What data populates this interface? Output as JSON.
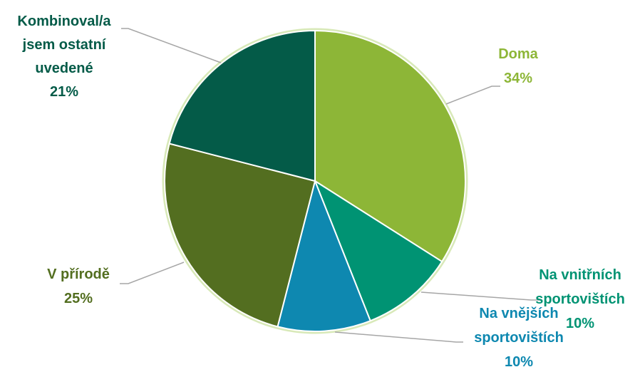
{
  "chart_data": {
    "type": "pie",
    "title": "",
    "slices": [
      {
        "label_lines": [
          "Doma"
        ],
        "value": 34,
        "value_text": "34%",
        "color": "#8DB637",
        "label_color": "#8DB637"
      },
      {
        "label_lines": [
          "Na vnitřních",
          "sportovištích"
        ],
        "value": 10,
        "value_text": "10%",
        "color": "#009373",
        "label_color": "#009373"
      },
      {
        "label_lines": [
          "Na vnějších",
          "sportovištích"
        ],
        "value": 10,
        "value_text": "10%",
        "color": "#0E88B0",
        "label_color": "#0E88B0"
      },
      {
        "label_lines": [
          "V přírodě"
        ],
        "value": 25,
        "value_text": "25%",
        "color": "#536E20",
        "label_color": "#536E20"
      },
      {
        "label_lines": [
          "Kombinoval/a",
          "jsem ostatní",
          "uvedené"
        ],
        "value": 21,
        "value_text": "21%",
        "color": "#045B48",
        "label_color": "#045B48"
      }
    ],
    "start_angle": "12 o'clock",
    "direction": "clockwise",
    "legend": "none",
    "slice_border_color": "#ffffff",
    "leader_line_color": "#A6A6A6"
  }
}
